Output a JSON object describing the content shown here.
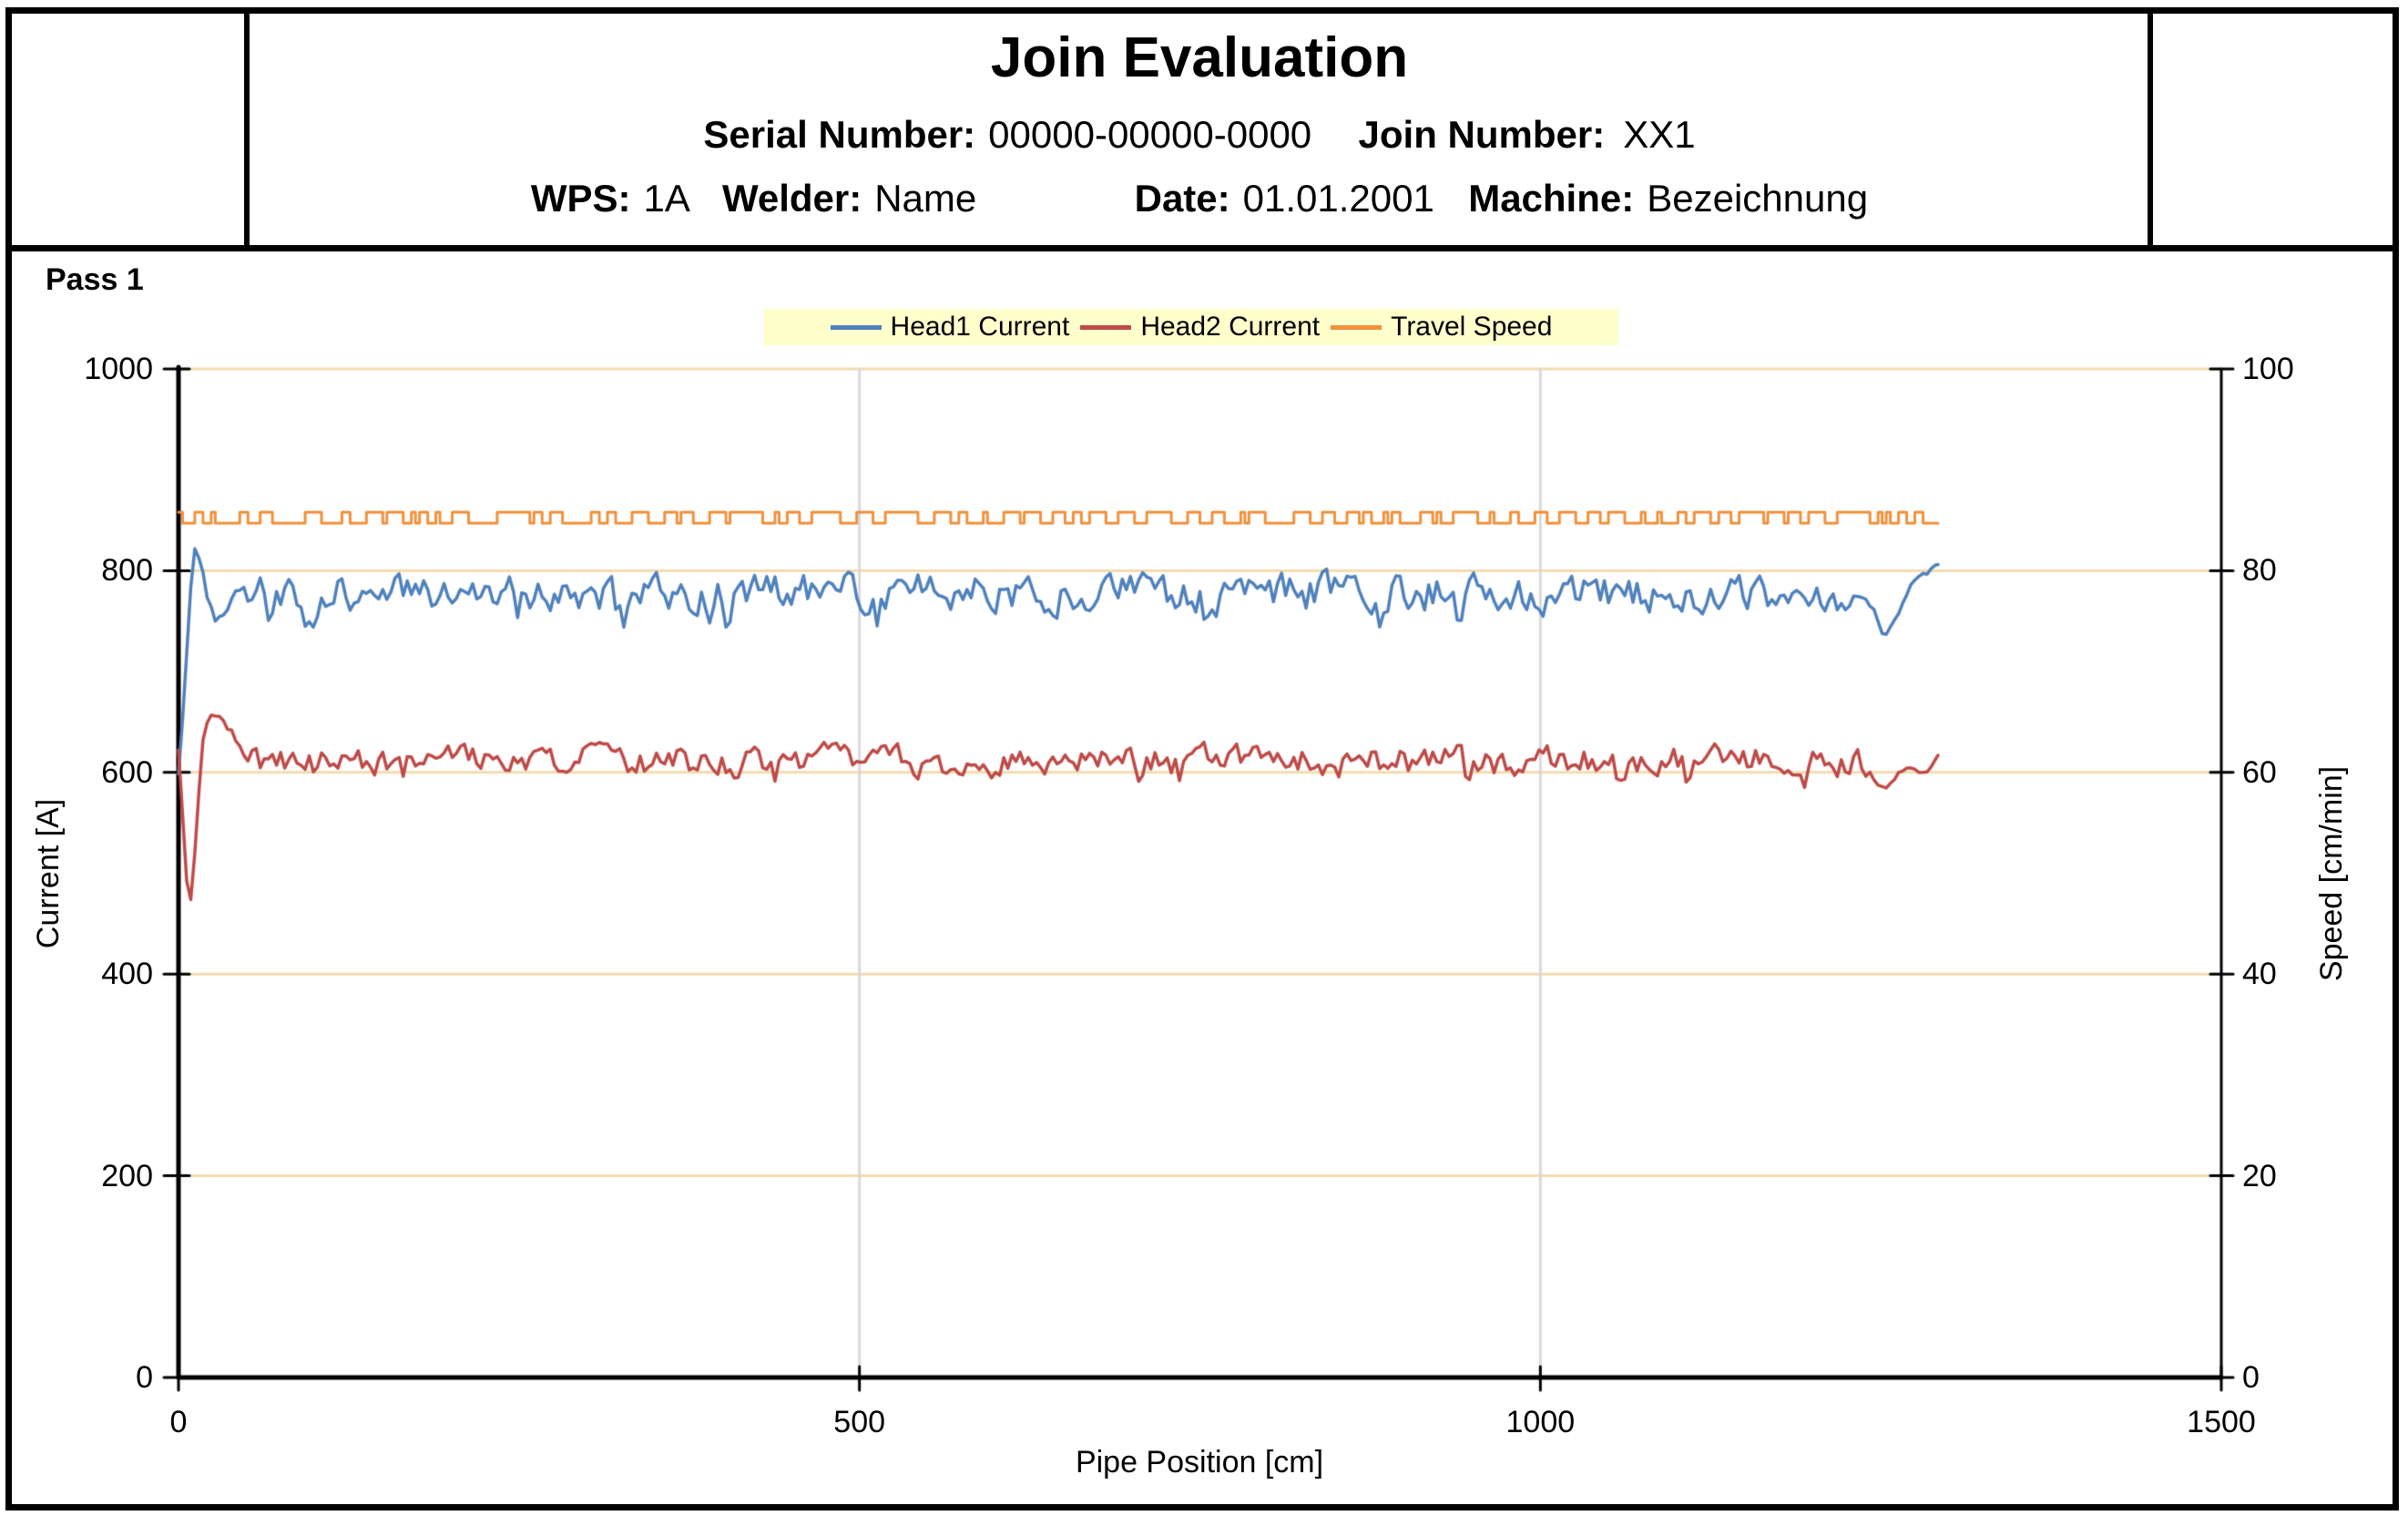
{
  "header": {
    "title": "Join Evaluation",
    "serial_label": "Serial Number:",
    "serial_value": "00000-00000-0000",
    "join_label": "Join Number:",
    "join_value": "XX1",
    "wps_label": "WPS:",
    "wps_value": "1A",
    "welder_label": "Welder:",
    "welder_value": "Name",
    "date_label": "Date:",
    "date_value": "01.01.2001",
    "machine_label": "Machine:",
    "machine_value": "Bezeichnung"
  },
  "pass_label": "Pass 1",
  "chart_data": {
    "type": "line",
    "title": "Pass 1",
    "xlabel": "Pipe Position [cm]",
    "ylabel_left": "Current [A]",
    "ylabel_right": "Speed [cm/min]",
    "x_range": [
      0,
      1500
    ],
    "x_ticks": [
      0,
      500,
      1000,
      1500
    ],
    "x_gridlines": [
      500,
      1000
    ],
    "y_left_range": [
      0,
      1000
    ],
    "y_left_ticks": [
      0,
      200,
      400,
      600,
      800,
      1000
    ],
    "y_right_range": [
      0,
      100
    ],
    "y_right_ticks": [
      0,
      20,
      40,
      60,
      80,
      100
    ],
    "grid_h_color": "#F2DCB1",
    "grid_v_color": "#D9D9D9",
    "axis_color": "#000000",
    "legend_bg": "#FFFFCC",
    "legend_position": "top-center",
    "x_step": 3,
    "x_data_end": 1292,
    "series": [
      {
        "name": "Head1 Current",
        "color": "#4F81BD",
        "axis": "left",
        "line_width": 3.5,
        "start_anchors": [
          [
            0,
            598
          ],
          [
            4,
            668
          ],
          [
            8,
            768
          ],
          [
            12,
            822
          ],
          [
            16,
            812
          ],
          [
            21,
            776
          ],
          [
            27,
            752
          ],
          [
            34,
            758
          ],
          [
            42,
            778
          ],
          [
            48,
            781
          ]
        ],
        "steady": {
          "mean": 778,
          "amp": 16,
          "ar": 0.45,
          "dip_prob": 0.05,
          "dip": 18,
          "min": 744,
          "max": 802,
          "seed": 20107
        },
        "end_anchors": [
          [
            1238,
            772
          ],
          [
            1246,
            760
          ],
          [
            1252,
            734
          ],
          [
            1258,
            744
          ],
          [
            1264,
            762
          ],
          [
            1272,
            786
          ],
          [
            1280,
            795
          ],
          [
            1286,
            799
          ],
          [
            1292,
            806
          ]
        ]
      },
      {
        "name": "Head2 Current",
        "color": "#BE4B48",
        "axis": "left",
        "line_width": 3.5,
        "start_anchors": [
          [
            0,
            621
          ],
          [
            3,
            560
          ],
          [
            6,
            492
          ],
          [
            9,
            472
          ],
          [
            12,
            520
          ],
          [
            15,
            584
          ],
          [
            18,
            634
          ],
          [
            22,
            652
          ],
          [
            27,
            657
          ],
          [
            33,
            649
          ],
          [
            39,
            641
          ],
          [
            45,
            624
          ],
          [
            50,
            612
          ]
        ],
        "steady": {
          "mean": 611,
          "amp": 13,
          "ar": 0.45,
          "dip_prob": 0.05,
          "dip": 14,
          "min": 585,
          "max": 631,
          "seed": 31337
        },
        "end_anchors": [
          [
            1240,
            602
          ],
          [
            1247,
            590
          ],
          [
            1253,
            584
          ],
          [
            1259,
            593
          ],
          [
            1265,
            601
          ],
          [
            1272,
            606
          ],
          [
            1279,
            598
          ],
          [
            1285,
            603
          ],
          [
            1292,
            617
          ]
        ]
      },
      {
        "name": "Travel Speed",
        "color": "#F0913C",
        "axis": "right",
        "line_width": 3,
        "square_wave": {
          "high": 85.8,
          "low": 84.7,
          "dwell_min": 1,
          "dwell_max": 4,
          "long_prob": 0.12,
          "long_extra": 4,
          "x_start": 0,
          "x_end": 1292,
          "seed": 7741
        }
      }
    ]
  }
}
